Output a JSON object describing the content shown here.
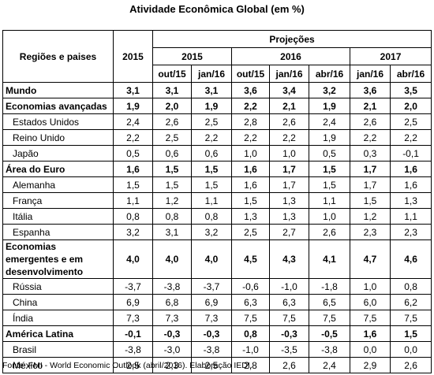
{
  "title": "Atividade Econômica Global (em %)",
  "header": {
    "regions": "Regiões e paises",
    "y2015": "2015",
    "projections": "Projeções",
    "groups": [
      "2015",
      "2016",
      "2017"
    ],
    "cols": [
      "out/15",
      "jan/16",
      "out/15",
      "jan/16",
      "abr/16",
      "jan/16",
      "abr/16"
    ]
  },
  "rows": [
    {
      "label": "Mundo",
      "values": [
        "3,1",
        "3,1",
        "3,1",
        "3,6",
        "3,4",
        "3,2",
        "3,6",
        "3,5"
      ]
    },
    {
      "label": "Economias avançadas",
      "values": [
        "1,9",
        "2,0",
        "1,9",
        "2,2",
        "2,1",
        "1,9",
        "2,1",
        "2,0"
      ]
    },
    {
      "label": "Estados Unidos",
      "values": [
        "2,4",
        "2,6",
        "2,5",
        "2,8",
        "2,6",
        "2,4",
        "2,6",
        "2,5"
      ]
    },
    {
      "label": "Reino Unido",
      "values": [
        "2,2",
        "2,5",
        "2,2",
        "2,2",
        "2,2",
        "1,9",
        "2,2",
        "2,2"
      ]
    },
    {
      "label": "Japão",
      "values": [
        "0,5",
        "0,6",
        "0,6",
        "1,0",
        "1,0",
        "0,5",
        "0,3",
        "-0,1"
      ]
    },
    {
      "label": "Área do Euro",
      "values": [
        "1,6",
        "1,5",
        "1,5",
        "1,6",
        "1,7",
        "1,5",
        "1,7",
        "1,6"
      ]
    },
    {
      "label": "Alemanha",
      "values": [
        "1,5",
        "1,5",
        "1,5",
        "1,6",
        "1,7",
        "1,5",
        "1,7",
        "1,6"
      ]
    },
    {
      "label": "França",
      "values": [
        "1,1",
        "1,2",
        "1,1",
        "1,5",
        "1,3",
        "1,1",
        "1,5",
        "1,3"
      ]
    },
    {
      "label": "Itália",
      "values": [
        "0,8",
        "0,8",
        "0,8",
        "1,3",
        "1,3",
        "1,0",
        "1,2",
        "1,1"
      ]
    },
    {
      "label": "Espanha",
      "values": [
        "3,2",
        "3,1",
        "3,2",
        "2,5",
        "2,7",
        "2,6",
        "2,3",
        "2,3"
      ]
    },
    {
      "label": "Economias emergentes e em desenvolvimento",
      "values": [
        "4,0",
        "4,0",
        "4,0",
        "4,5",
        "4,3",
        "4,1",
        "4,7",
        "4,6"
      ]
    },
    {
      "label": "Rússia",
      "values": [
        "-3,7",
        "-3,8",
        "-3,7",
        "-0,6",
        "-1,0",
        "-1,8",
        "1,0",
        "0,8"
      ]
    },
    {
      "label": "China",
      "values": [
        "6,9",
        "6,8",
        "6,9",
        "6,3",
        "6,3",
        "6,5",
        "6,0",
        "6,2"
      ]
    },
    {
      "label": "Índia",
      "values": [
        "7,3",
        "7,3",
        "7,3",
        "7,5",
        "7,5",
        "7,5",
        "7,5",
        "7,5"
      ]
    },
    {
      "label": "América Latina",
      "values": [
        "-0,1",
        "-0,3",
        "-0,3",
        "0,8",
        "-0,3",
        "-0,5",
        "1,6",
        "1,5"
      ]
    },
    {
      "label": "Brasil",
      "values": [
        "-3,8",
        "-3,0",
        "-3,8",
        "-1,0",
        "-3,5",
        "-3,8",
        "0,0",
        "0,0"
      ]
    },
    {
      "label": "México",
      "values": [
        "2,5",
        "2,3",
        "2,5",
        "2,8",
        "2,6",
        "2,4",
        "2,9",
        "2,6"
      ]
    }
  ],
  "source": "Fonte: FMI - World Economic Outlook (abril/2016). Elaboração IEDI."
}
